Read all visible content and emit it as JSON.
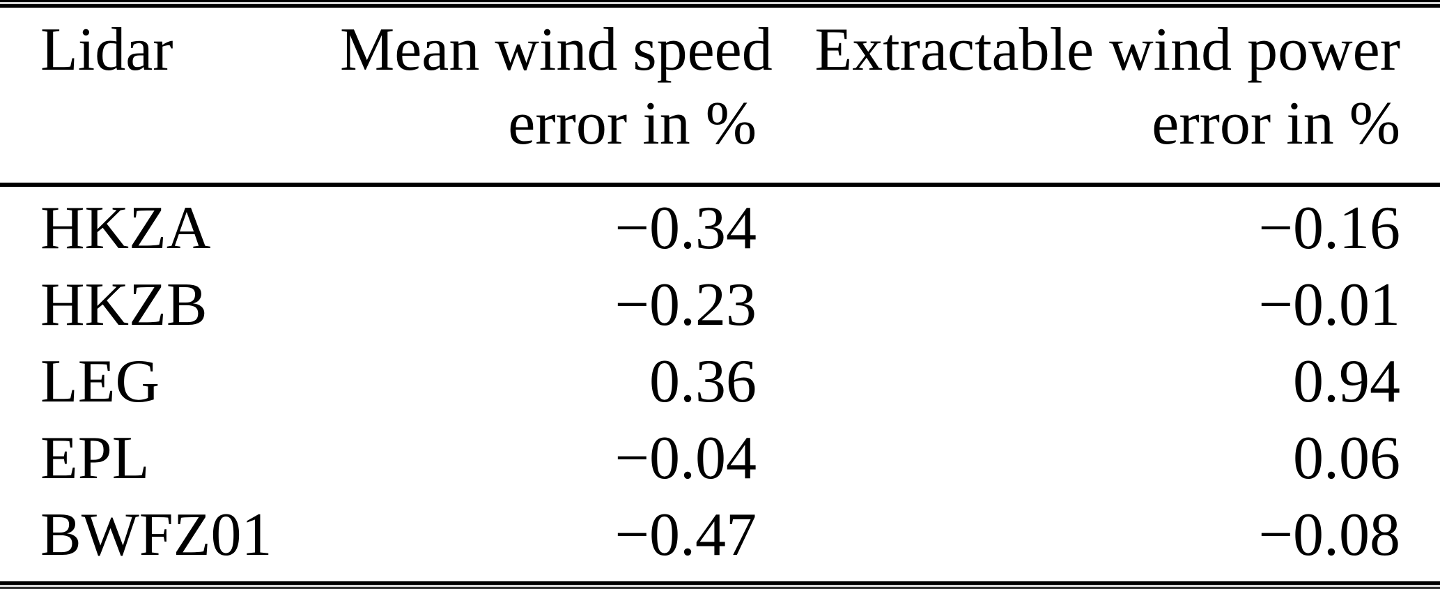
{
  "page": {
    "background": "#ffffff",
    "text_color": "#000000",
    "rule_color": "#000000"
  },
  "table": {
    "columns": [
      {
        "label": "Lidar",
        "sublabel": ""
      },
      {
        "label": "Mean wind speed",
        "sublabel": "error in %"
      },
      {
        "label": "Extractable wind power",
        "sublabel": "error in %"
      }
    ],
    "rows": [
      {
        "lidar": "HKZA",
        "mean_wind_speed_error": "−0.34",
        "extractable_wind_power_error": "−0.16"
      },
      {
        "lidar": "HKZB",
        "mean_wind_speed_error": "−0.23",
        "extractable_wind_power_error": "−0.01"
      },
      {
        "lidar": "LEG",
        "mean_wind_speed_error": "0.36",
        "extractable_wind_power_error": "0.94"
      },
      {
        "lidar": "EPL",
        "mean_wind_speed_error": "−0.04",
        "extractable_wind_power_error": "0.06"
      },
      {
        "lidar": "BWFZ01",
        "mean_wind_speed_error": "−0.47",
        "extractable_wind_power_error": "−0.08"
      }
    ]
  }
}
